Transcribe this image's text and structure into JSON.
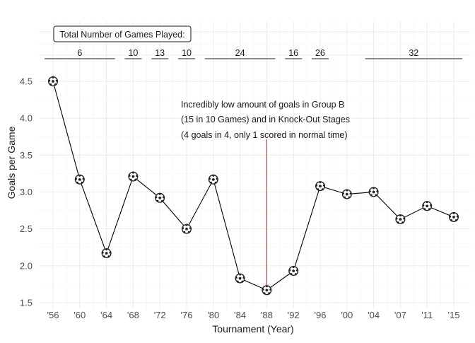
{
  "chart_data": {
    "type": "line",
    "title": "",
    "xlabel": "Tournament (Year)",
    "ylabel": "Goals per Game",
    "categories": [
      "'56",
      "'60",
      "'64",
      "'68",
      "'72",
      "'76",
      "'80",
      "'84",
      "'88",
      "'92",
      "'96",
      "'00",
      "'04",
      "'07",
      "'11",
      "'15"
    ],
    "values": [
      4.5,
      3.17,
      2.17,
      3.21,
      2.92,
      2.5,
      3.17,
      1.83,
      1.67,
      1.93,
      3.08,
      2.97,
      3.0,
      2.63,
      2.81,
      2.66
    ],
    "ylim": [
      1.5,
      4.7
    ],
    "yticks": [
      1.5,
      2.0,
      2.5,
      3.0,
      3.5,
      4.0,
      4.5
    ],
    "ytick_labels": [
      "1.5",
      "2.0",
      "2.5",
      "3.0",
      "3.5",
      "4.0",
      "4.5"
    ],
    "grid": true,
    "marker": "soccer-ball-icon",
    "games_played": {
      "title": "Total Number of Games Played:",
      "groups": [
        {
          "label": "6",
          "from_index": 0,
          "to_index": 2
        },
        {
          "label": "10",
          "from_index": 3,
          "to_index": 3
        },
        {
          "label": "13",
          "from_index": 4,
          "to_index": 4
        },
        {
          "label": "10",
          "from_index": 5,
          "to_index": 5
        },
        {
          "label": "24",
          "from_index": 6,
          "to_index": 8
        },
        {
          "label": "16",
          "from_index": 9,
          "to_index": 9
        },
        {
          "label": "26",
          "from_index": 10,
          "to_index": 10
        },
        {
          "label": "32",
          "from_index": 12,
          "to_index": 15
        }
      ]
    },
    "annotation": {
      "lines": [
        "Incredibly low amount of goals in Group B",
        "(15 in 10 Games) and in Knock-Out Stages",
        "(4 goals in 4, only 1 scored in normal time)"
      ],
      "target_index": 8,
      "line_color": "#cc2222"
    },
    "colors": {
      "line": "#000000",
      "marker_fill": "#ffffff",
      "marker_patch": "#222222"
    }
  }
}
